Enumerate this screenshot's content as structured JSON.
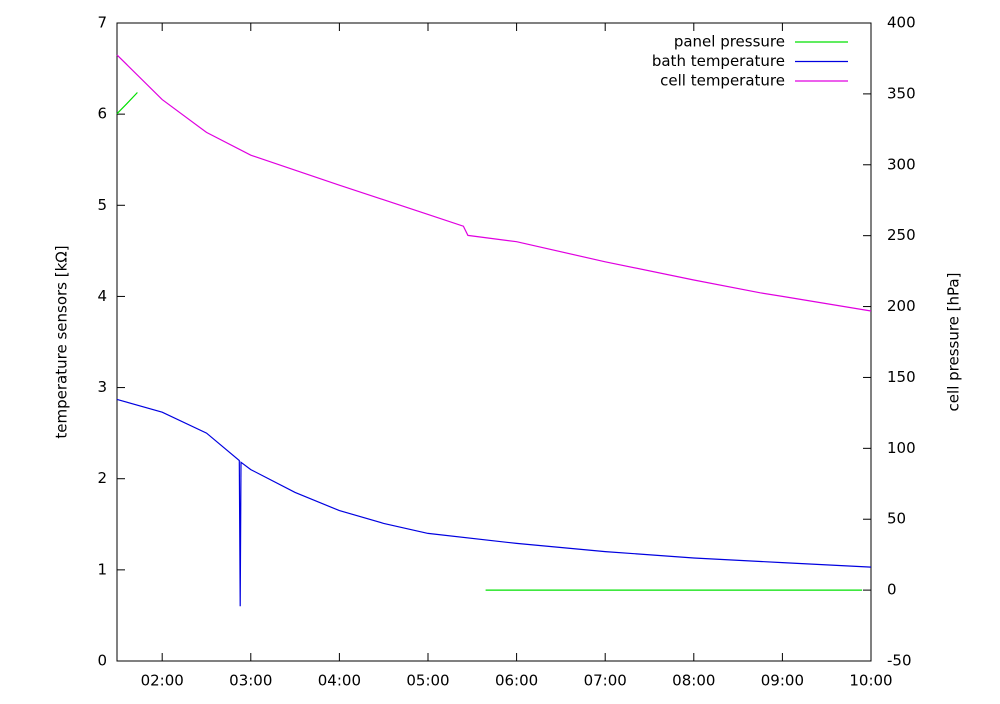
{
  "chart_data": {
    "type": "line",
    "ylabel": "temperature sensors [kΩ]",
    "y2label": "cell pressure [hPa]",
    "xlim": [
      1.49,
      10
    ],
    "xticks": [
      {
        "value": 2,
        "label": "02:00"
      },
      {
        "value": 3,
        "label": "03:00"
      },
      {
        "value": 4,
        "label": "04:00"
      },
      {
        "value": 5,
        "label": "05:00"
      },
      {
        "value": 6,
        "label": "06:00"
      },
      {
        "value": 7,
        "label": "07:00"
      },
      {
        "value": 8,
        "label": "08:00"
      },
      {
        "value": 9,
        "label": "09:00"
      },
      {
        "value": 10,
        "label": "10:00"
      }
    ],
    "ylim": [
      0,
      7
    ],
    "yticks": [
      0,
      1,
      2,
      3,
      4,
      5,
      6,
      7
    ],
    "y2lim": [
      -50,
      400
    ],
    "y2ticks": [
      -50,
      0,
      50,
      100,
      150,
      200,
      250,
      300,
      350,
      400
    ],
    "legend": "top-right",
    "series": [
      {
        "name": "panel pressure",
        "color": "#00e000",
        "axis": "y2",
        "x": [
          1.49,
          1.6,
          1.72,
          3.7,
          5.65,
          6.5,
          7.5,
          8.5,
          9.5,
          9.9
        ],
        "values": [
          336,
          343,
          351,
          null,
          0,
          0,
          0,
          0,
          0,
          0
        ]
      },
      {
        "name": "bath temperature",
        "color": "#0000e0",
        "x": [
          1.49,
          2.0,
          2.5,
          2.87,
          2.88,
          2.89,
          3.0,
          3.5,
          4.0,
          4.5,
          5.0,
          6.0,
          7.0,
          8.0,
          9.0,
          10.0
        ],
        "values": [
          2.87,
          2.73,
          2.5,
          2.2,
          0.6,
          2.18,
          2.1,
          1.85,
          1.65,
          1.51,
          1.4,
          1.29,
          1.2,
          1.13,
          1.08,
          1.03
        ]
      },
      {
        "name": "cell temperature",
        "color": "#e000e0",
        "x": [
          1.49,
          2.0,
          2.5,
          3.0,
          4.0,
          5.0,
          5.4,
          5.45,
          6.0,
          7.0,
          8.0,
          8.75,
          9.0,
          10.0
        ],
        "values": [
          6.65,
          6.16,
          5.8,
          5.55,
          5.22,
          4.9,
          4.77,
          4.67,
          4.6,
          4.38,
          4.18,
          4.04,
          4.0,
          3.84
        ]
      }
    ]
  }
}
